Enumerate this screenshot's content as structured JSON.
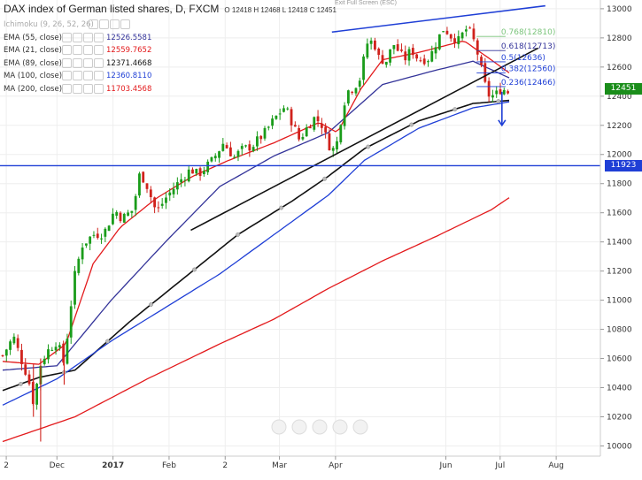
{
  "header": {
    "title": "DAX index of German listed shares, D, FXCM",
    "ohlc": "O 12418 H 12468 L 12418 C 12451",
    "exit_fullscreen": "Exit Full Screen (ESC)"
  },
  "indicators": [
    {
      "label": "Ichimoku (9, 26, 52, 26)",
      "value": "",
      "color": "#9aa"
    },
    {
      "label": "EMA (55, close)",
      "value": "12526.5581",
      "color": "#333399"
    },
    {
      "label": "EMA (21, close)",
      "value": "12559.7652",
      "color": "#e31a1c"
    },
    {
      "label": "EMA (89, close)",
      "value": "12371.4668",
      "color": "#111111"
    },
    {
      "label": "MA (100, close)",
      "value": "12360.8110",
      "color": "#1f3fd6"
    },
    {
      "label": "MA (200, close)",
      "value": "11703.4568",
      "color": "#e31a1c"
    }
  ],
  "price_tags": [
    {
      "value": "12451",
      "price": 12451,
      "color": "#1a8d1a"
    },
    {
      "value": "11923",
      "price": 11923,
      "color": "#1f3fd6"
    }
  ],
  "chart_data": {
    "type": "candlestick",
    "title": "DAX index of German listed shares, D, FXCM",
    "y_ticks": [
      10000,
      10200,
      10400,
      10600,
      10800,
      11000,
      11200,
      11400,
      11600,
      11800,
      12000,
      12200,
      12400,
      12600,
      12800,
      13000
    ],
    "ylim": [
      9930,
      13060
    ],
    "x_tick_labels": [
      {
        "label": "2",
        "day": 2
      },
      {
        "label": "Dec",
        "day": 30
      },
      {
        "label": "2017",
        "day": 61
      },
      {
        "label": "Feb",
        "day": 92
      },
      {
        "label": "2",
        "day": 123
      },
      {
        "label": "Mar",
        "day": 153
      },
      {
        "label": "Apr",
        "day": 184
      },
      {
        "label": "Jun",
        "day": 245
      },
      {
        "label": "Jul",
        "day": 275
      },
      {
        "label": "Aug",
        "day": 306
      }
    ],
    "last_day": 280,
    "anchors": [
      [
        0,
        10620
      ],
      [
        6,
        10750
      ],
      [
        10,
        10600
      ],
      [
        14,
        10470
      ],
      [
        17,
        10300
      ],
      [
        21,
        10560
      ],
      [
        24,
        10640
      ],
      [
        30,
        10720
      ],
      [
        34,
        10560
      ],
      [
        37,
        10900
      ],
      [
        40,
        11180
      ],
      [
        44,
        11380
      ],
      [
        50,
        11450
      ],
      [
        56,
        11460
      ],
      [
        62,
        11620
      ],
      [
        66,
        11560
      ],
      [
        72,
        11620
      ],
      [
        76,
        11880
      ],
      [
        80,
        11780
      ],
      [
        85,
        11600
      ],
      [
        90,
        11700
      ],
      [
        98,
        11820
      ],
      [
        104,
        11900
      ],
      [
        108,
        11860
      ],
      [
        116,
        11960
      ],
      [
        122,
        12080
      ],
      [
        128,
        11980
      ],
      [
        132,
        12030
      ],
      [
        138,
        12060
      ],
      [
        145,
        12150
      ],
      [
        150,
        12240
      ],
      [
        156,
        12330
      ],
      [
        160,
        12220
      ],
      [
        164,
        12100
      ],
      [
        168,
        12180
      ],
      [
        172,
        12250
      ],
      [
        176,
        12220
      ],
      [
        180,
        12070
      ],
      [
        184,
        12020
      ],
      [
        186,
        12180
      ],
      [
        190,
        12430
      ],
      [
        194,
        12460
      ],
      [
        198,
        12530
      ],
      [
        201,
        12760
      ],
      [
        205,
        12780
      ],
      [
        208,
        12660
      ],
      [
        212,
        12640
      ],
      [
        216,
        12760
      ],
      [
        222,
        12650
      ],
      [
        226,
        12720
      ],
      [
        230,
        12650
      ],
      [
        236,
        12660
      ],
      [
        240,
        12780
      ],
      [
        244,
        12870
      ],
      [
        248,
        12810
      ],
      [
        252,
        12780
      ],
      [
        256,
        12860
      ],
      [
        259,
        12830
      ],
      [
        262,
        12720
      ],
      [
        265,
        12560
      ],
      [
        268,
        12410
      ],
      [
        272,
        12400
      ],
      [
        276,
        12460
      ],
      [
        279,
        12420
      ],
      [
        280,
        12451
      ]
    ],
    "series": [
      {
        "name": "EMA (55, close)",
        "color": "#333399",
        "points": [
          [
            0,
            10520
          ],
          [
            30,
            10550
          ],
          [
            60,
            11000
          ],
          [
            90,
            11400
          ],
          [
            120,
            11780
          ],
          [
            150,
            11990
          ],
          [
            180,
            12150
          ],
          [
            210,
            12480
          ],
          [
            240,
            12580
          ],
          [
            260,
            12640
          ],
          [
            280,
            12526
          ]
        ]
      },
      {
        "name": "EMA (21, close)",
        "color": "#e31a1c",
        "points": [
          [
            0,
            10580
          ],
          [
            20,
            10560
          ],
          [
            35,
            10700
          ],
          [
            50,
            11250
          ],
          [
            65,
            11500
          ],
          [
            85,
            11700
          ],
          [
            105,
            11850
          ],
          [
            125,
            11960
          ],
          [
            150,
            12080
          ],
          [
            175,
            12220
          ],
          [
            185,
            12150
          ],
          [
            198,
            12450
          ],
          [
            210,
            12650
          ],
          [
            230,
            12700
          ],
          [
            255,
            12780
          ],
          [
            270,
            12650
          ],
          [
            280,
            12560
          ]
        ]
      },
      {
        "name": "EMA (89, close)",
        "color": "#111111",
        "points": [
          [
            0,
            10380
          ],
          [
            20,
            10470
          ],
          [
            40,
            10520
          ],
          [
            70,
            10850
          ],
          [
            100,
            11150
          ],
          [
            130,
            11450
          ],
          [
            160,
            11680
          ],
          [
            180,
            11850
          ],
          [
            200,
            12040
          ],
          [
            230,
            12230
          ],
          [
            260,
            12350
          ],
          [
            280,
            12371
          ]
        ]
      },
      {
        "name": "MA (100, close)",
        "color": "#1f3fd6",
        "points": [
          [
            0,
            10280
          ],
          [
            30,
            10460
          ],
          [
            60,
            10720
          ],
          [
            90,
            10950
          ],
          [
            120,
            11180
          ],
          [
            150,
            11450
          ],
          [
            180,
            11720
          ],
          [
            200,
            11960
          ],
          [
            230,
            12180
          ],
          [
            260,
            12320
          ],
          [
            280,
            12361
          ]
        ]
      },
      {
        "name": "MA (200, close)",
        "color": "#e31a1c",
        "points": [
          [
            0,
            10030
          ],
          [
            40,
            10200
          ],
          [
            80,
            10460
          ],
          [
            120,
            10700
          ],
          [
            150,
            10870
          ],
          [
            180,
            11080
          ],
          [
            210,
            11270
          ],
          [
            240,
            11440
          ],
          [
            270,
            11620
          ],
          [
            280,
            11703
          ]
        ]
      }
    ],
    "trendlines": [
      {
        "color": "#1f3fd6",
        "points": [
          [
            182,
            12840
          ],
          [
            300,
            13020
          ]
        ]
      },
      {
        "color": "#111111",
        "points": [
          [
            104,
            11480
          ],
          [
            296,
            12730
          ]
        ]
      }
    ],
    "horizontal_line": {
      "price": 11923,
      "color": "#1f3fd6"
    },
    "fib_levels": [
      {
        "label": "0.768(12810)",
        "price": 12810,
        "color": "#7bc47b"
      },
      {
        "label": "0.618(12713)",
        "price": 12713,
        "color": "#333399"
      },
      {
        "label": "0.5(12636)",
        "price": 12636,
        "color": "#1f3fd6"
      },
      {
        "label": "0.382(12560)",
        "price": 12560,
        "color": "#1f3fd6"
      },
      {
        "label": "0.236(12466)",
        "price": 12466,
        "color": "#1f3fd6"
      }
    ],
    "arrow": {
      "from": [
        276,
        12430
      ],
      "to": [
        276,
        12200
      ],
      "color": "#1f3fd6"
    }
  }
}
